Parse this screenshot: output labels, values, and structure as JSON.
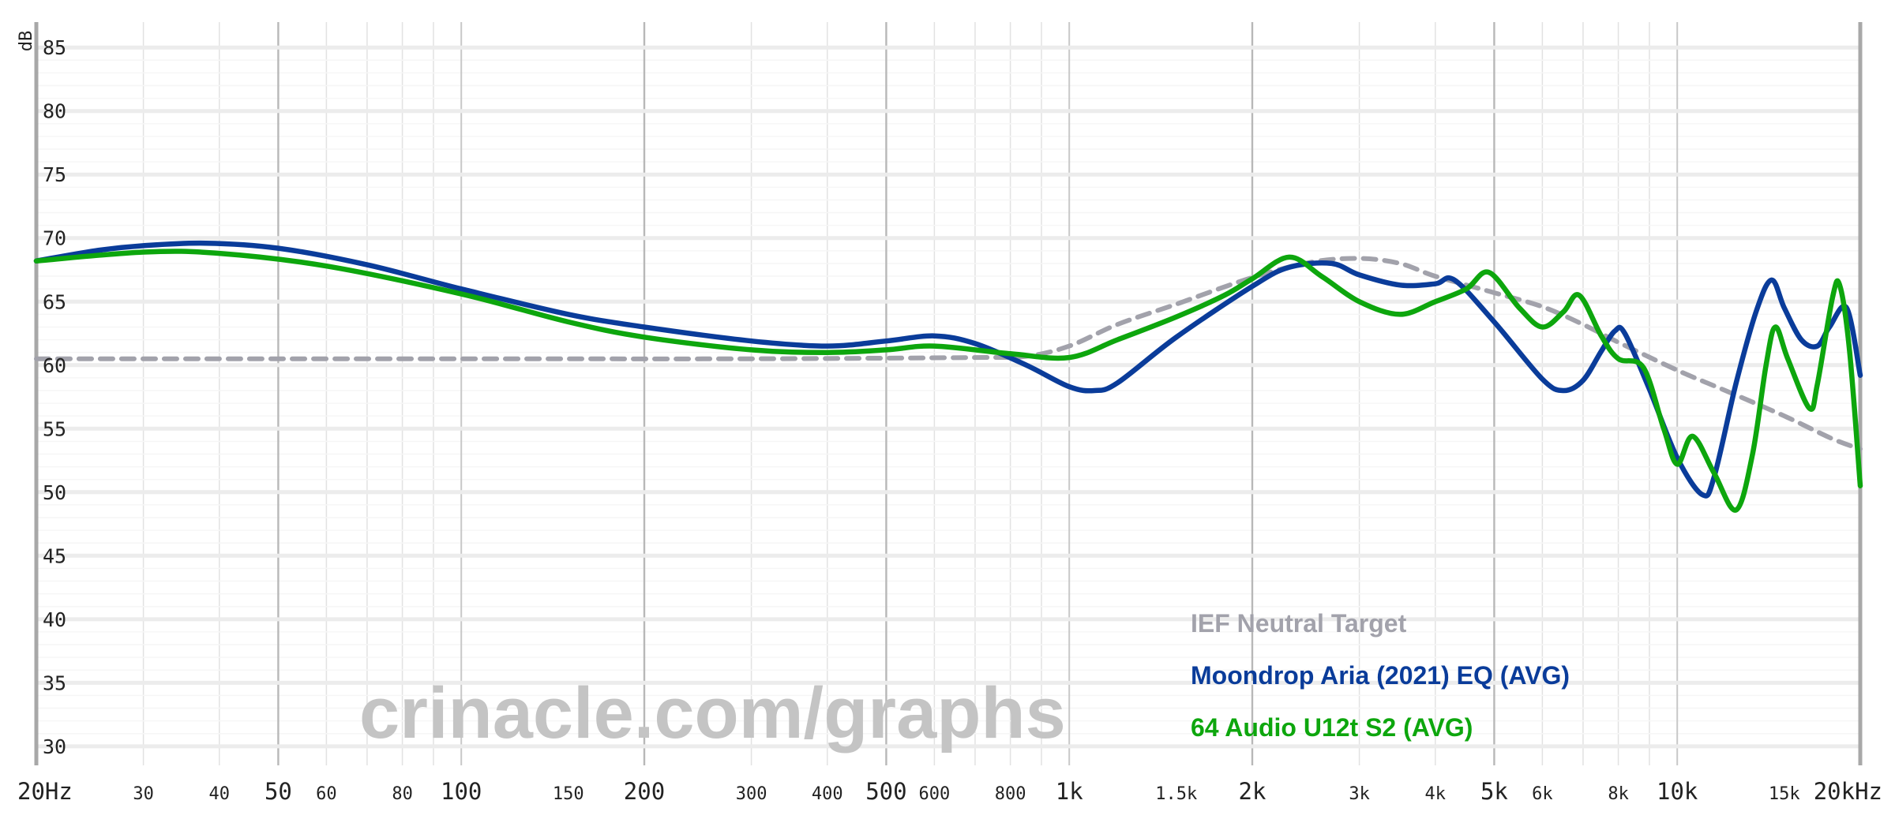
{
  "watermark": "crinacle.com/graphs",
  "chart_data": {
    "type": "line",
    "ylabel": "dB",
    "xscale": "log",
    "xlim": [
      20,
      20000
    ],
    "ylim": [
      28.5,
      87
    ],
    "grid": true,
    "legend_position": "bottom-right",
    "y_ticks": [
      30,
      35,
      40,
      45,
      50,
      55,
      60,
      65,
      70,
      75,
      80,
      85
    ],
    "y_tick_labels": [
      "30",
      "35",
      "40",
      "45",
      "50",
      "55",
      "60",
      "65",
      "70",
      "75",
      "80",
      "85"
    ],
    "x_ticks": [
      20,
      30,
      40,
      50,
      60,
      80,
      100,
      150,
      200,
      300,
      400,
      500,
      600,
      800,
      1000,
      1500,
      2000,
      3000,
      4000,
      5000,
      6000,
      8000,
      10000,
      15000,
      20000
    ],
    "x_tick_labels": [
      "20Hz",
      "30",
      "40",
      "50",
      "60",
      "80",
      "100",
      "150",
      "200",
      "300",
      "400",
      "500",
      "600",
      "800",
      "1k",
      "1.5k",
      "2k",
      "3k",
      "4k",
      "5k",
      "6k",
      "8k",
      "10k",
      "15k",
      "20kHz"
    ],
    "series": [
      {
        "name": "IEF Neutral Target",
        "color": "#a2a2ab",
        "dashed": true,
        "points": [
          [
            20,
            60.5
          ],
          [
            100,
            60.5
          ],
          [
            300,
            60.5
          ],
          [
            700,
            60.6
          ],
          [
            850,
            60.7
          ],
          [
            1000,
            61.5
          ],
          [
            1200,
            63.2
          ],
          [
            1500,
            64.8
          ],
          [
            2000,
            66.9
          ],
          [
            2500,
            68.1
          ],
          [
            3000,
            68.4
          ],
          [
            3500,
            68.0
          ],
          [
            4000,
            67.0
          ],
          [
            5000,
            65.7
          ],
          [
            6000,
            64.6
          ],
          [
            7000,
            63.2
          ],
          [
            8000,
            61.8
          ],
          [
            10000,
            59.6
          ],
          [
            12000,
            58.0
          ],
          [
            15000,
            56.0
          ],
          [
            18000,
            54.2
          ],
          [
            20000,
            53.4
          ]
        ]
      },
      {
        "name": "Moondrop Aria (2021) EQ (AVG)",
        "color": "#0a3c9a",
        "dashed": false,
        "points": [
          [
            20,
            68.2
          ],
          [
            25,
            69.0
          ],
          [
            30,
            69.4
          ],
          [
            38,
            69.6
          ],
          [
            50,
            69.2
          ],
          [
            70,
            67.9
          ],
          [
            100,
            66.0
          ],
          [
            150,
            64.0
          ],
          [
            200,
            63.0
          ],
          [
            300,
            61.9
          ],
          [
            400,
            61.5
          ],
          [
            500,
            61.9
          ],
          [
            600,
            62.3
          ],
          [
            700,
            61.7
          ],
          [
            850,
            60.0
          ],
          [
            1000,
            58.3
          ],
          [
            1100,
            58.0
          ],
          [
            1200,
            58.6
          ],
          [
            1500,
            62.2
          ],
          [
            2000,
            66.2
          ],
          [
            2300,
            67.7
          ],
          [
            2700,
            68.0
          ],
          [
            3000,
            67.1
          ],
          [
            3500,
            66.3
          ],
          [
            4000,
            66.4
          ],
          [
            4300,
            66.7
          ],
          [
            5000,
            63.4
          ],
          [
            6000,
            58.9
          ],
          [
            6500,
            58.0
          ],
          [
            7000,
            58.8
          ],
          [
            7500,
            61.1
          ],
          [
            7900,
            62.7
          ],
          [
            8200,
            62.5
          ],
          [
            9000,
            58.1
          ],
          [
            10000,
            52.7
          ],
          [
            11000,
            49.8
          ],
          [
            11500,
            51.2
          ],
          [
            12500,
            58.6
          ],
          [
            13500,
            64.3
          ],
          [
            14300,
            66.7
          ],
          [
            15000,
            64.5
          ],
          [
            16000,
            62.0
          ],
          [
            17000,
            61.5
          ],
          [
            17800,
            63.0
          ],
          [
            19000,
            64.5
          ],
          [
            20000,
            59.2
          ]
        ]
      },
      {
        "name": "64 Audio U12t S2 (AVG)",
        "color": "#0da60d",
        "dashed": false,
        "points": [
          [
            20,
            68.2
          ],
          [
            30,
            68.9
          ],
          [
            40,
            68.8
          ],
          [
            60,
            67.8
          ],
          [
            100,
            65.6
          ],
          [
            150,
            63.4
          ],
          [
            200,
            62.2
          ],
          [
            300,
            61.2
          ],
          [
            400,
            61.0
          ],
          [
            500,
            61.2
          ],
          [
            600,
            61.5
          ],
          [
            800,
            60.9
          ],
          [
            1000,
            60.6
          ],
          [
            1200,
            62.0
          ],
          [
            1500,
            63.8
          ],
          [
            1800,
            65.5
          ],
          [
            2000,
            66.8
          ],
          [
            2300,
            68.5
          ],
          [
            2600,
            67.0
          ],
          [
            3000,
            65.0
          ],
          [
            3500,
            64.0
          ],
          [
            4000,
            65.0
          ],
          [
            4500,
            66.0
          ],
          [
            4900,
            67.3
          ],
          [
            5500,
            64.5
          ],
          [
            6000,
            63.0
          ],
          [
            6500,
            64.2
          ],
          [
            6900,
            65.5
          ],
          [
            7500,
            62.3
          ],
          [
            8000,
            60.5
          ],
          [
            8800,
            59.8
          ],
          [
            9500,
            55.0
          ],
          [
            10000,
            52.2
          ],
          [
            10600,
            54.4
          ],
          [
            11500,
            51.5
          ],
          [
            12500,
            48.6
          ],
          [
            13300,
            53.0
          ],
          [
            14000,
            60.0
          ],
          [
            14500,
            63.0
          ],
          [
            15200,
            60.5
          ],
          [
            16500,
            56.6
          ],
          [
            17000,
            58.5
          ],
          [
            18000,
            65.3
          ],
          [
            18500,
            66.3
          ],
          [
            19200,
            61.2
          ],
          [
            20000,
            50.5
          ]
        ]
      }
    ]
  }
}
